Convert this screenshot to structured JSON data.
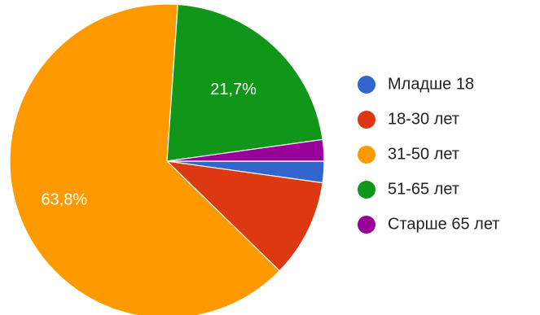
{
  "chart_data": {
    "type": "pie",
    "title": "",
    "legend_position": "right",
    "start_angle_deg": 0,
    "direction": "clockwise",
    "slices": [
      {
        "label": "Младше 18",
        "value": 2.2,
        "color": "#3366CC",
        "shown_label": ""
      },
      {
        "label": "18-30 лет",
        "value": 10.1,
        "color": "#DC3912",
        "shown_label": ""
      },
      {
        "label": "31-50 лет",
        "value": 63.8,
        "color": "#FF9900",
        "shown_label": "63,8%"
      },
      {
        "label": "51-65 лет",
        "value": 21.7,
        "color": "#109618",
        "shown_label": "21,7%"
      },
      {
        "label": "Старше 65 лет",
        "value": 2.2,
        "color": "#990099",
        "shown_label": ""
      }
    ]
  }
}
